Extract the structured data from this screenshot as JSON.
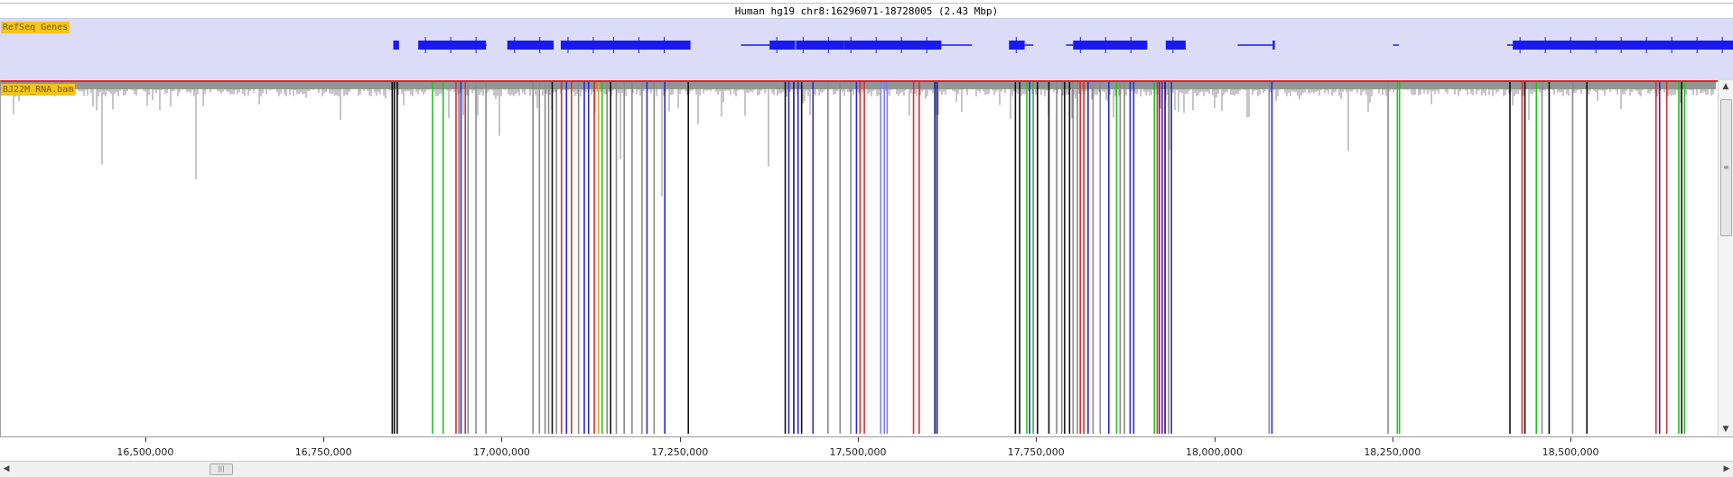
{
  "title": "Human hg19  chr8:16296071-18728005 (2.43 Mbp)",
  "region": {
    "start": 16296071,
    "end": 18728005
  },
  "tracks": {
    "genes_label": "RefSeq Genes",
    "bam_label": "BJ22M_RNA.bam"
  },
  "colors": {
    "genes_bg": "#dcdcf8",
    "gene_fill": "#1a1aee",
    "coverage": "#8c8c8c",
    "highlight_border": "#e82020",
    "label_bg": "#f5c518",
    "line_black": "#111111",
    "line_gray": "#8a8a8a",
    "line_green": "#22c322",
    "line_red": "#d93030",
    "line_blue": "#2a2ad0",
    "line_navy": "#15157a",
    "line_purple": "#7a1a9a",
    "line_periwinkle": "#8080ee",
    "line_orange": "#e0a030"
  },
  "axis": {
    "ticks": [
      {
        "pos": 16500000,
        "label": "16,500,000"
      },
      {
        "pos": 16750000,
        "label": "16,750,000"
      },
      {
        "pos": 17000000,
        "label": "17,000,000"
      },
      {
        "pos": 17250000,
        "label": "17,250,000"
      },
      {
        "pos": 17500000,
        "label": "17,500,000"
      },
      {
        "pos": 17750000,
        "label": "17,750,000"
      },
      {
        "pos": 18000000,
        "label": "18,000,000"
      },
      {
        "pos": 18250000,
        "label": "18,250,000"
      },
      {
        "pos": 18500000,
        "label": "18,500,000"
      }
    ]
  },
  "genes": [
    {
      "start": 16848000,
      "end": 16856000,
      "type": "block"
    },
    {
      "start": 16883000,
      "end": 16978000,
      "type": "block"
    },
    {
      "start": 16960000,
      "end": 16979000,
      "type": "intron"
    },
    {
      "start": 17008000,
      "end": 17073000,
      "type": "block"
    },
    {
      "start": 17083000,
      "end": 17148000,
      "type": "block"
    },
    {
      "start": 17147000,
      "end": 17265000,
      "type": "block"
    },
    {
      "start": 17336000,
      "end": 17376000,
      "type": "intron"
    },
    {
      "start": 17376000,
      "end": 17412000,
      "type": "block"
    },
    {
      "start": 17413000,
      "end": 17480000,
      "type": "block"
    },
    {
      "start": 17480000,
      "end": 17617000,
      "type": "block"
    },
    {
      "start": 17617000,
      "end": 17660000,
      "type": "intron"
    },
    {
      "start": 17712000,
      "end": 17734000,
      "type": "block"
    },
    {
      "start": 17734000,
      "end": 17746000,
      "type": "intron"
    },
    {
      "start": 17792000,
      "end": 17802000,
      "type": "intron"
    },
    {
      "start": 17802000,
      "end": 17906000,
      "type": "block"
    },
    {
      "start": 17932000,
      "end": 17960000,
      "type": "block"
    },
    {
      "start": 18033000,
      "end": 18082000,
      "type": "intron"
    },
    {
      "start": 18082000,
      "end": 18085000,
      "type": "block"
    },
    {
      "start": 18251000,
      "end": 18259000,
      "type": "intron"
    },
    {
      "start": 18411000,
      "end": 18419000,
      "type": "intron"
    },
    {
      "start": 18419000,
      "end": 18728000,
      "type": "block"
    }
  ],
  "read_lines": [
    {
      "pos": 16846500,
      "c": "line_black"
    },
    {
      "pos": 16849500,
      "c": "line_black"
    },
    {
      "pos": 16853500,
      "c": "line_black"
    },
    {
      "pos": 16903000,
      "c": "line_green"
    },
    {
      "pos": 16918000,
      "c": "line_green"
    },
    {
      "pos": 16936000,
      "c": "line_red"
    },
    {
      "pos": 16940000,
      "c": "line_gray"
    },
    {
      "pos": 16943000,
      "c": "line_blue"
    },
    {
      "pos": 16949000,
      "c": "line_red"
    },
    {
      "pos": 16953000,
      "c": "line_gray"
    },
    {
      "pos": 16964000,
      "c": "line_gray"
    },
    {
      "pos": 16978000,
      "c": "line_gray"
    },
    {
      "pos": 17044000,
      "c": "line_gray"
    },
    {
      "pos": 17053000,
      "c": "line_gray"
    },
    {
      "pos": 17061000,
      "c": "line_gray"
    },
    {
      "pos": 17066000,
      "c": "line_gray"
    },
    {
      "pos": 17071000,
      "c": "line_black"
    },
    {
      "pos": 17077000,
      "c": "line_gray"
    },
    {
      "pos": 17084000,
      "c": "line_red"
    },
    {
      "pos": 17091000,
      "c": "line_blue"
    },
    {
      "pos": 17098000,
      "c": "line_red"
    },
    {
      "pos": 17108000,
      "c": "line_gray"
    },
    {
      "pos": 17116000,
      "c": "line_blue"
    },
    {
      "pos": 17122000,
      "c": "line_blue"
    },
    {
      "pos": 17130000,
      "c": "line_red"
    },
    {
      "pos": 17136000,
      "c": "line_orange"
    },
    {
      "pos": 17141000,
      "c": "line_green"
    },
    {
      "pos": 17148000,
      "c": "line_gray"
    },
    {
      "pos": 17153000,
      "c": "line_black"
    },
    {
      "pos": 17161000,
      "c": "line_gray"
    },
    {
      "pos": 17172000,
      "c": "line_gray"
    },
    {
      "pos": 17183000,
      "c": "line_gray"
    },
    {
      "pos": 17197000,
      "c": "line_gray"
    },
    {
      "pos": 17204000,
      "c": "line_blue"
    },
    {
      "pos": 17214000,
      "c": "line_gray"
    },
    {
      "pos": 17229000,
      "c": "line_blue"
    },
    {
      "pos": 17262000,
      "c": "line_black"
    },
    {
      "pos": 17398000,
      "c": "line_black"
    },
    {
      "pos": 17403000,
      "c": "line_blue"
    },
    {
      "pos": 17410000,
      "c": "line_navy"
    },
    {
      "pos": 17416000,
      "c": "line_blue"
    },
    {
      "pos": 17421000,
      "c": "line_black"
    },
    {
      "pos": 17437000,
      "c": "line_blue"
    },
    {
      "pos": 17458000,
      "c": "line_gray"
    },
    {
      "pos": 17475000,
      "c": "line_gray"
    },
    {
      "pos": 17490000,
      "c": "line_gray"
    },
    {
      "pos": 17498000,
      "c": "line_blue"
    },
    {
      "pos": 17503000,
      "c": "line_red"
    },
    {
      "pos": 17509000,
      "c": "line_red"
    },
    {
      "pos": 17532000,
      "c": "line_periwinkle"
    },
    {
      "pos": 17537000,
      "c": "line_periwinkle"
    },
    {
      "pos": 17541000,
      "c": "line_periwinkle"
    },
    {
      "pos": 17578000,
      "c": "line_red"
    },
    {
      "pos": 17586000,
      "c": "line_red"
    },
    {
      "pos": 17608000,
      "c": "line_navy"
    },
    {
      "pos": 17611000,
      "c": "line_navy"
    },
    {
      "pos": 17721000,
      "c": "line_black"
    },
    {
      "pos": 17727000,
      "c": "line_black"
    },
    {
      "pos": 17737000,
      "c": "line_green"
    },
    {
      "pos": 17741000,
      "c": "line_blue"
    },
    {
      "pos": 17746000,
      "c": "line_green"
    },
    {
      "pos": 17752000,
      "c": "line_black"
    },
    {
      "pos": 17768000,
      "c": "line_black"
    },
    {
      "pos": 17779000,
      "c": "line_gray"
    },
    {
      "pos": 17786000,
      "c": "line_gray"
    },
    {
      "pos": 17790000,
      "c": "line_black"
    },
    {
      "pos": 17797000,
      "c": "line_black"
    },
    {
      "pos": 17802000,
      "c": "line_gray"
    },
    {
      "pos": 17808000,
      "c": "line_gray"
    },
    {
      "pos": 17812000,
      "c": "line_red"
    },
    {
      "pos": 17817000,
      "c": "line_red"
    },
    {
      "pos": 17823000,
      "c": "line_blue"
    },
    {
      "pos": 17830000,
      "c": "line_gray"
    },
    {
      "pos": 17840000,
      "c": "line_gray"
    },
    {
      "pos": 17852000,
      "c": "line_blue"
    },
    {
      "pos": 17863000,
      "c": "line_green"
    },
    {
      "pos": 17868000,
      "c": "line_gray"
    },
    {
      "pos": 17874000,
      "c": "line_gray"
    },
    {
      "pos": 17882000,
      "c": "line_blue"
    },
    {
      "pos": 17887000,
      "c": "line_blue"
    },
    {
      "pos": 17916000,
      "c": "line_green"
    },
    {
      "pos": 17920000,
      "c": "line_red"
    },
    {
      "pos": 17923000,
      "c": "line_purple"
    },
    {
      "pos": 17927000,
      "c": "line_purple"
    },
    {
      "pos": 17931000,
      "c": "line_navy"
    },
    {
      "pos": 17936000,
      "c": "line_gray"
    },
    {
      "pos": 17940000,
      "c": "line_blue"
    },
    {
      "pos": 18077000,
      "c": "line_gray"
    },
    {
      "pos": 18081000,
      "c": "line_blue"
    },
    {
      "pos": 18244000,
      "c": "line_gray"
    },
    {
      "pos": 18257000,
      "c": "line_green"
    },
    {
      "pos": 18260000,
      "c": "line_green"
    },
    {
      "pos": 18415000,
      "c": "line_black"
    },
    {
      "pos": 18432000,
      "c": "line_red"
    },
    {
      "pos": 18436000,
      "c": "line_black"
    },
    {
      "pos": 18452000,
      "c": "line_green"
    },
    {
      "pos": 18460000,
      "c": "line_gray"
    },
    {
      "pos": 18470000,
      "c": "line_black"
    },
    {
      "pos": 18503000,
      "c": "line_gray"
    },
    {
      "pos": 18523000,
      "c": "line_black"
    },
    {
      "pos": 18620000,
      "c": "line_red"
    },
    {
      "pos": 18625000,
      "c": "line_blue"
    },
    {
      "pos": 18635000,
      "c": "line_red"
    },
    {
      "pos": 18652000,
      "c": "line_green"
    },
    {
      "pos": 18656000,
      "c": "line_black"
    },
    {
      "pos": 18660000,
      "c": "line_green"
    }
  ]
}
